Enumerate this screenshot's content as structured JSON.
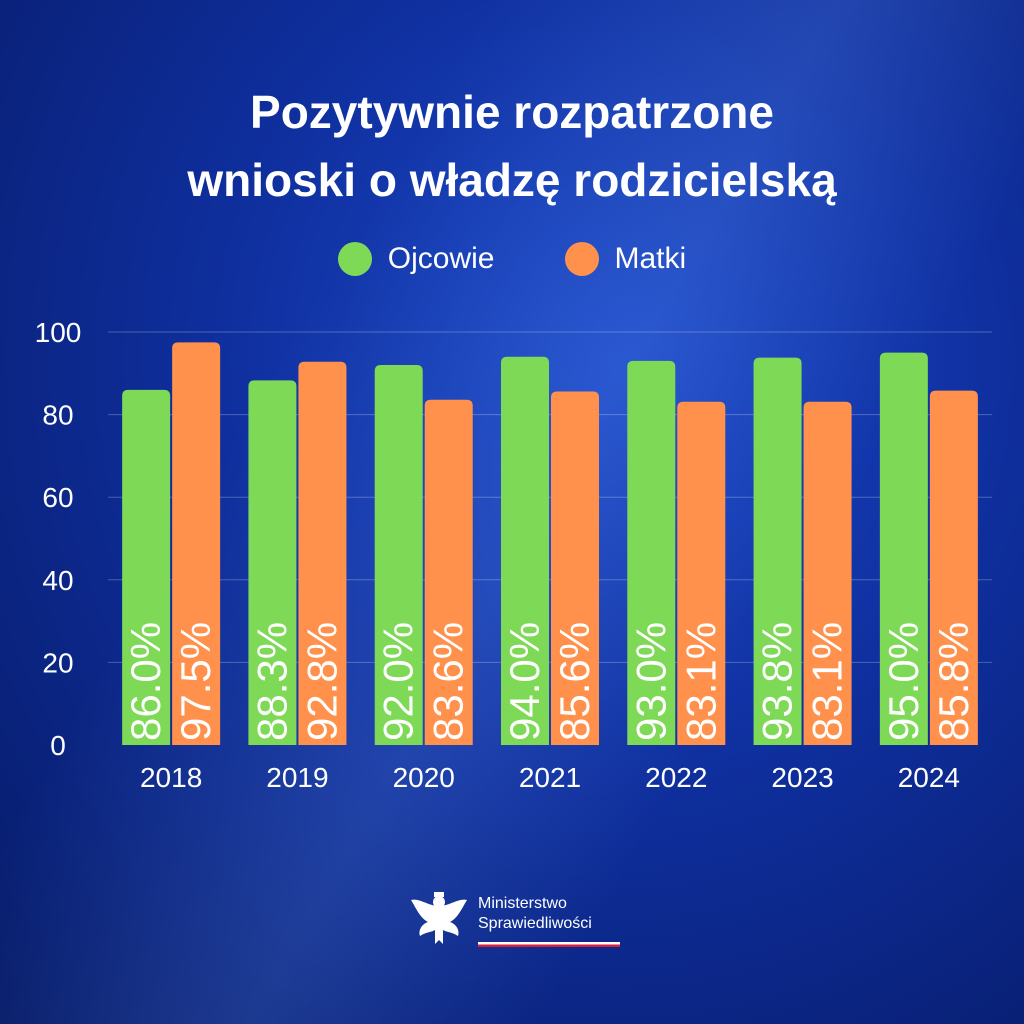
{
  "title_line1": "Pozytywnie rozpatrzone",
  "title_line2": "wnioski o władzę rodzicielską",
  "legend": [
    {
      "label": "Ojcowie",
      "color": "#7ed957"
    },
    {
      "label": "Matki",
      "color": "#ff914d"
    }
  ],
  "chart_data": {
    "type": "bar",
    "title": "Pozytywnie rozpatrzone wnioski o władzę rodzicielską",
    "categories": [
      "2018",
      "2019",
      "2020",
      "2021",
      "2022",
      "2023",
      "2024"
    ],
    "series": [
      {
        "name": "Ojcowie",
        "color": "#7ed957",
        "values": [
          86.0,
          88.3,
          92.0,
          94.0,
          93.0,
          93.8,
          95.0
        ],
        "labels": [
          "86.0%",
          "88.3%",
          "92.0%",
          "94.0%",
          "93.0%",
          "93.8%",
          "95.0%"
        ]
      },
      {
        "name": "Matki",
        "color": "#ff914d",
        "values": [
          97.5,
          92.8,
          83.6,
          85.6,
          83.1,
          83.1,
          85.8
        ],
        "labels": [
          "97.5%",
          "92.8%",
          "83.6%",
          "85.6%",
          "83.1%",
          "83.1%",
          "85.8%"
        ]
      }
    ],
    "yticks": [
      "0",
      "20",
      "40",
      "60",
      "80",
      "100"
    ],
    "ylim": [
      0,
      100
    ],
    "grid": true,
    "legend_position": "top"
  },
  "logo": {
    "line1": "Ministerstwo",
    "line2": "Sprawiedliwości"
  }
}
